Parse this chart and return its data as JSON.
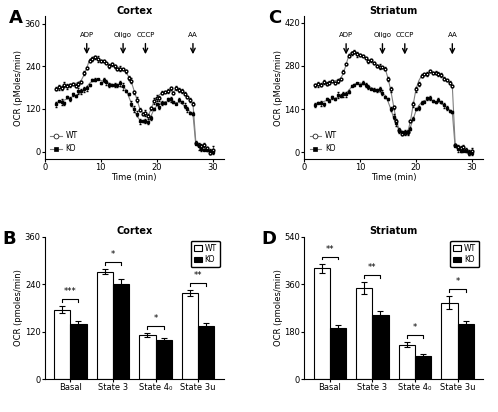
{
  "panel_A": {
    "title": "Cortex",
    "ylabel": "OCR (pMoles/min)",
    "xlabel": "Time (min)",
    "ylim": [
      -20,
      380
    ],
    "yticks": [
      0,
      120,
      240,
      360
    ],
    "xlim": [
      0,
      32
    ],
    "xticks": [
      0,
      10,
      20,
      30
    ],
    "arrows": [
      {
        "x": 7.5,
        "label": "ADP"
      },
      {
        "x": 14.0,
        "label": "Oligo"
      },
      {
        "x": 18.0,
        "label": "CCCP"
      },
      {
        "x": 26.5,
        "label": "AA"
      }
    ],
    "wt_y": [
      175,
      178,
      180,
      182,
      185,
      188,
      190,
      192,
      195,
      200,
      215,
      235,
      258,
      265,
      268,
      262,
      255,
      252,
      248,
      245,
      242,
      240,
      238,
      235,
      230,
      225,
      210,
      195,
      170,
      145,
      120,
      110,
      105,
      100,
      120,
      140,
      150,
      160,
      165,
      168,
      170,
      172,
      168,
      175,
      175,
      170,
      165,
      155,
      145,
      135,
      30,
      20,
      15,
      10,
      8,
      5,
      5
    ],
    "ko_y": [
      138,
      140,
      142,
      145,
      148,
      150,
      155,
      158,
      162,
      165,
      172,
      182,
      192,
      198,
      203,
      205,
      200,
      198,
      195,
      192,
      190,
      188,
      185,
      182,
      180,
      175,
      155,
      135,
      115,
      100,
      88,
      85,
      80,
      82,
      100,
      118,
      128,
      135,
      138,
      140,
      142,
      140,
      140,
      138,
      138,
      135,
      128,
      120,
      112,
      105,
      20,
      12,
      8,
      5,
      3,
      2,
      2
    ]
  },
  "panel_C": {
    "title": "Striatum",
    "ylabel": "OCR (pMoles/min)",
    "xlabel": "Time (min)",
    "ylim": [
      -20,
      440
    ],
    "yticks": [
      0,
      140,
      280,
      420
    ],
    "xlim": [
      0,
      32
    ],
    "xticks": [
      0,
      10,
      20,
      30
    ],
    "arrows": [
      {
        "x": 7.5,
        "label": "ADP"
      },
      {
        "x": 14.0,
        "label": "Oligo"
      },
      {
        "x": 18.0,
        "label": "CCCP"
      },
      {
        "x": 26.5,
        "label": "AA"
      }
    ],
    "wt_y": [
      215,
      218,
      220,
      222,
      225,
      228,
      230,
      232,
      235,
      240,
      255,
      285,
      315,
      325,
      328,
      320,
      315,
      310,
      305,
      300,
      295,
      290,
      285,
      280,
      275,
      270,
      240,
      200,
      150,
      100,
      75,
      65,
      60,
      65,
      100,
      155,
      205,
      232,
      248,
      252,
      255,
      258,
      260,
      255,
      255,
      250,
      242,
      235,
      225,
      215,
      30,
      20,
      15,
      10,
      8,
      5,
      5
    ],
    "ko_y": [
      158,
      160,
      162,
      165,
      168,
      170,
      172,
      175,
      178,
      180,
      185,
      192,
      202,
      212,
      220,
      225,
      225,
      222,
      218,
      215,
      210,
      205,
      200,
      195,
      190,
      185,
      165,
      140,
      112,
      88,
      72,
      65,
      62,
      65,
      82,
      108,
      135,
      152,
      162,
      168,
      170,
      170,
      168,
      165,
      162,
      158,
      152,
      145,
      138,
      130,
      18,
      10,
      6,
      4,
      2,
      2,
      2
    ]
  },
  "panel_B": {
    "title": "Cortex",
    "ylabel": "OCR (pmoles/min)",
    "ylim": [
      0,
      360
    ],
    "yticks": [
      0,
      120,
      240,
      360
    ],
    "categories": [
      "Basal",
      "State 3",
      "State 4₀",
      "State 3u"
    ],
    "wt_values": [
      175,
      272,
      112,
      218
    ],
    "wt_errors": [
      9,
      7,
      5,
      8
    ],
    "ko_values": [
      140,
      240,
      98,
      135
    ],
    "ko_errors": [
      7,
      14,
      7,
      6
    ],
    "sig_labels": [
      "***",
      "*",
      "*",
      "**"
    ]
  },
  "panel_D": {
    "title": "Striatum",
    "ylabel": "OCR (pmoles/min)",
    "ylim": [
      0,
      540
    ],
    "yticks": [
      0,
      180,
      360,
      540
    ],
    "categories": [
      "Basal",
      "State 3",
      "State 4₀",
      "State 3u"
    ],
    "wt_values": [
      420,
      345,
      130,
      290
    ],
    "wt_errors": [
      18,
      22,
      10,
      25
    ],
    "ko_values": [
      195,
      245,
      88,
      210
    ],
    "ko_errors": [
      10,
      15,
      7,
      12
    ],
    "sig_labels": [
      "**",
      "**",
      "*",
      "*"
    ]
  }
}
